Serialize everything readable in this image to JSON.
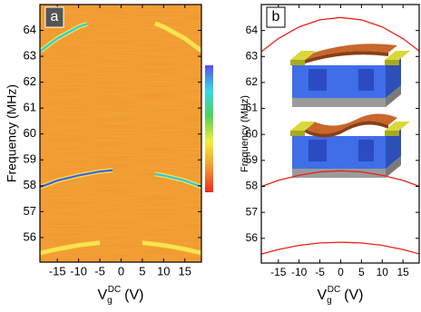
{
  "chart_data": [
    {
      "type": "heatmap",
      "panel_label": "a",
      "y_label": "Frequency (MHz)",
      "x_label": {
        "base": "V",
        "subscript": "g",
        "superscript": "DC",
        "unit": "(V)"
      },
      "xlim": [
        -19.1,
        18.9
      ],
      "ylim": [
        55.05,
        65.0
      ],
      "xticks": [
        -15,
        -10,
        -5,
        0,
        5,
        10,
        15
      ],
      "yticks": [
        56,
        57,
        58,
        59,
        60,
        61,
        62,
        63,
        64
      ],
      "background_color": "#f0982e",
      "colorbar": {
        "colors": [
          "#5a4cf0",
          "#36d8e8",
          "#4fd25a",
          "#f2ee3a",
          "#f29a2e",
          "#ee2a20"
        ]
      },
      "ridges": [
        {
          "color": "#1fd3e0",
          "x": [
            -19,
            -15,
            -10,
            -8
          ],
          "values": [
            63.2,
            63.69,
            64.14,
            64.25
          ]
        },
        {
          "color": "#f5e84a",
          "x": [
            8,
            10,
            15,
            19
          ],
          "values": [
            64.27,
            64.14,
            63.69,
            63.2
          ]
        },
        {
          "color": "#3a62e8",
          "x": [
            -19,
            -15,
            -10,
            -5,
            -2
          ],
          "values": [
            57.95,
            58.2,
            58.4,
            58.55,
            58.6
          ]
        },
        {
          "color": "#2fc8e0",
          "x": [
            8,
            10,
            15,
            19
          ],
          "values": [
            58.45,
            58.4,
            58.2,
            57.95
          ]
        },
        {
          "color": "#f5e84a",
          "x": [
            -19,
            -15,
            -10,
            -5
          ],
          "values": [
            55.4,
            55.55,
            55.7,
            55.8
          ]
        },
        {
          "color": "#f5e84a",
          "x": [
            5,
            10,
            15,
            19
          ],
          "values": [
            55.8,
            55.7,
            55.55,
            55.4
          ]
        }
      ]
    },
    {
      "type": "line",
      "panel_label": "b",
      "y_label": "Frequency (MHz)",
      "x_label": {
        "base": "V",
        "subscript": "g",
        "superscript": "DC",
        "unit": "(V)"
      },
      "xlim": [
        -19.1,
        18.9
      ],
      "ylim": [
        55.05,
        65.0
      ],
      "xticks": [
        -15,
        -10,
        -5,
        0,
        5,
        10,
        15
      ],
      "yticks": [
        56,
        57,
        58,
        59,
        60,
        61,
        62,
        63,
        64
      ],
      "x": [
        -19,
        -15,
        -10,
        -5,
        0,
        5,
        10,
        15,
        19
      ],
      "series": [
        {
          "color": "#e8201c",
          "values": [
            63.2,
            63.69,
            64.14,
            64.41,
            64.5,
            64.41,
            64.14,
            63.69,
            63.2
          ]
        },
        {
          "color": "#e8201c",
          "values": [
            58.0,
            58.23,
            58.43,
            58.56,
            58.6,
            58.56,
            58.43,
            58.23,
            58.0
          ]
        },
        {
          "color": "#e8201c",
          "values": [
            55.4,
            55.57,
            55.73,
            55.82,
            55.85,
            55.82,
            55.73,
            55.57,
            55.4
          ]
        }
      ]
    }
  ]
}
